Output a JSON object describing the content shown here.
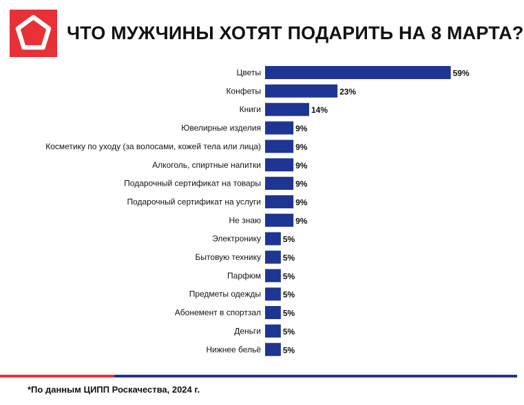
{
  "header": {
    "title": "ЧТО МУЖЧИНЫ ХОТЯТ ПОДАРИТЬ НА 8 МАРТА?",
    "logo_icon": "pentagon-logo-icon"
  },
  "footer": {
    "note": "*По данным ЦИПП Роскачества, 2024 г."
  },
  "colors": {
    "bar": "#1e3593",
    "accent_red": "#e73137",
    "accent_blue": "#1e3593"
  },
  "chart_data": {
    "type": "bar",
    "orientation": "horizontal",
    "title": "ЧТО МУЖЧИНЫ ХОТЯТ ПОДАРИТЬ НА 8 МАРТА?",
    "categories": [
      "Цветы",
      "Конфеты",
      "Книги",
      "Ювелирные изделия",
      "Косметику по уходу (за волосами, кожей тела или лица)",
      "Алкоголь, спиртные напитки",
      "Подарочный сертификат на товары",
      "Подарочный сертификат на услуги",
      "Не знаю",
      "Электронику",
      "Бытовую технику",
      "Парфюм",
      "Предметы одежды",
      "Абонемент в спортзал",
      "Деньги",
      "Нижнее бельё"
    ],
    "values": [
      59,
      23,
      14,
      9,
      9,
      9,
      9,
      9,
      9,
      5,
      5,
      5,
      5,
      5,
      5,
      5
    ],
    "value_labels": [
      "59%",
      "23%",
      "14%",
      "9%",
      "9%",
      "9%",
      "9%",
      "9%",
      "9%",
      "5%",
      "5%",
      "5%",
      "5%",
      "5%",
      "5%",
      "5%"
    ],
    "unit": "%",
    "xlim": [
      0,
      59
    ],
    "grid": false,
    "legend": "none"
  }
}
